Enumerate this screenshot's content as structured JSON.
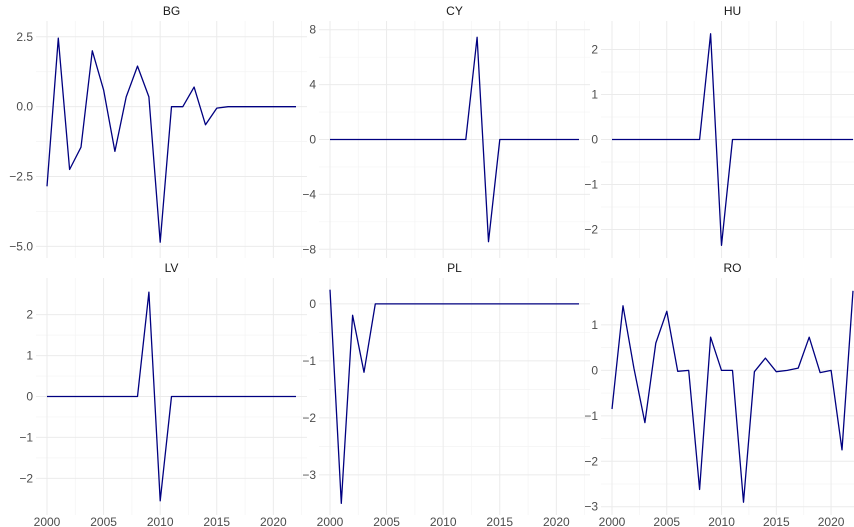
{
  "chart_data": [
    {
      "type": "line",
      "title": "BG",
      "x": [
        2000,
        2001,
        2002,
        2003,
        2004,
        2005,
        2006,
        2007,
        2008,
        2009,
        2010,
        2011,
        2012,
        2013,
        2014,
        2015,
        2016,
        2017,
        2018,
        2019,
        2020,
        2021,
        2022
      ],
      "series": [
        {
          "values": [
            -2.85,
            2.45,
            -2.25,
            -1.45,
            2.0,
            0.6,
            -1.6,
            0.35,
            1.45,
            0.35,
            -4.85,
            0.0,
            0.0,
            0.7,
            -0.65,
            -0.05,
            0.0,
            0.0,
            0.0,
            0.0,
            0.0,
            0.0,
            0.0
          ],
          "color": "#000080"
        }
      ],
      "xlim": [
        2000,
        2022
      ],
      "ylim": [
        -5.2,
        2.85
      ],
      "yticks": [
        2.5,
        0.0,
        -2.5,
        -5.0
      ],
      "ytick_labels": [
        "2.5",
        "0.0",
        "−2.5",
        "−5.0"
      ],
      "xticks": [
        2000,
        2005,
        2010,
        2015,
        2020
      ],
      "grid": true
    },
    {
      "type": "line",
      "title": "CY",
      "x": [
        2000,
        2001,
        2002,
        2003,
        2004,
        2005,
        2006,
        2007,
        2008,
        2009,
        2010,
        2011,
        2012,
        2013,
        2014,
        2015,
        2016,
        2017,
        2018,
        2019,
        2020,
        2021,
        2022
      ],
      "series": [
        {
          "values": [
            0,
            0,
            0,
            0,
            0,
            0,
            0,
            0,
            0,
            0,
            0,
            0,
            0,
            7.45,
            -7.45,
            0,
            0,
            0,
            0,
            0,
            0,
            0,
            0
          ],
          "color": "#000080"
        }
      ],
      "xlim": [
        2000,
        2022
      ],
      "ylim": [
        -8.2,
        8.2
      ],
      "yticks": [
        8,
        4,
        0,
        -4,
        -8
      ],
      "ytick_labels": [
        "8",
        "4",
        "0",
        "−4",
        "−8"
      ],
      "xticks": [
        2000,
        2005,
        2010,
        2015,
        2020
      ],
      "grid": true
    },
    {
      "type": "line",
      "title": "HU",
      "x": [
        2000,
        2001,
        2002,
        2003,
        2004,
        2005,
        2006,
        2007,
        2008,
        2009,
        2010,
        2011,
        2012,
        2013,
        2014,
        2015,
        2016,
        2017,
        2018,
        2019,
        2020,
        2021,
        2022
      ],
      "series": [
        {
          "values": [
            0,
            0,
            0,
            0,
            0,
            0,
            0,
            0,
            0,
            2.35,
            -2.35,
            0,
            0,
            0,
            0,
            0,
            0,
            0,
            0,
            0,
            0,
            0,
            0
          ],
          "color": "#000080"
        }
      ],
      "xlim": [
        2000,
        2022
      ],
      "ylim": [
        -2.5,
        2.5
      ],
      "yticks": [
        2,
        1,
        0,
        -1,
        -2
      ],
      "ytick_labels": [
        "2",
        "1",
        "0",
        "−1",
        "−2"
      ],
      "xticks": [
        2000,
        2005,
        2010,
        2015,
        2020
      ],
      "grid": true
    },
    {
      "type": "line",
      "title": "LV",
      "x": [
        2000,
        2001,
        2002,
        2003,
        2004,
        2005,
        2006,
        2007,
        2008,
        2009,
        2010,
        2011,
        2012,
        2013,
        2014,
        2015,
        2016,
        2017,
        2018,
        2019,
        2020,
        2021,
        2022
      ],
      "series": [
        {
          "values": [
            0,
            0,
            0,
            0,
            0,
            0,
            0,
            0,
            0,
            2.55,
            -2.55,
            0,
            0,
            0,
            0,
            0,
            0,
            0,
            0,
            0,
            0,
            0,
            0
          ],
          "color": "#000080"
        }
      ],
      "xlim": [
        2000,
        2022
      ],
      "ylim": [
        -2.75,
        2.75
      ],
      "yticks": [
        2,
        1,
        0,
        -1,
        -2
      ],
      "ytick_labels": [
        "2",
        "1",
        "0",
        "−1",
        "−2"
      ],
      "xticks": [
        2000,
        2005,
        2010,
        2015,
        2020
      ],
      "xtick_labels": [
        "2000",
        "2005",
        "2010",
        "2015",
        "2020"
      ],
      "grid": true
    },
    {
      "type": "line",
      "title": "PL",
      "x": [
        2000,
        2001,
        2002,
        2003,
        2004,
        2005,
        2006,
        2007,
        2008,
        2009,
        2010,
        2011,
        2012,
        2013,
        2014,
        2015,
        2016,
        2017,
        2018,
        2019,
        2020,
        2021,
        2022
      ],
      "series": [
        {
          "values": [
            0.25,
            -3.5,
            -0.2,
            -1.2,
            0,
            0,
            0,
            0,
            0,
            0,
            0,
            0,
            0,
            0,
            0,
            0,
            0,
            0,
            0,
            0,
            0,
            0,
            0
          ],
          "color": "#000080"
        }
      ],
      "xlim": [
        2000,
        2022
      ],
      "ylim": [
        -3.6,
        0.35
      ],
      "yticks": [
        0,
        -1,
        -2,
        -3
      ],
      "ytick_labels": [
        "0",
        "−1",
        "−2",
        "−3"
      ],
      "xticks": [
        2000,
        2005,
        2010,
        2015,
        2020
      ],
      "xtick_labels": [
        "2000",
        "2005",
        "2010",
        "2015",
        "2020"
      ],
      "grid": true
    },
    {
      "type": "line",
      "title": "RO",
      "x": [
        2000,
        2001,
        2002,
        2003,
        2004,
        2005,
        2006,
        2007,
        2008,
        2009,
        2010,
        2011,
        2012,
        2013,
        2014,
        2015,
        2016,
        2017,
        2018,
        2019,
        2020,
        2021,
        2022
      ],
      "series": [
        {
          "values": [
            -0.85,
            1.42,
            0.05,
            -1.15,
            0.6,
            1.3,
            -0.02,
            0.0,
            -2.62,
            0.73,
            0.0,
            0.0,
            -2.9,
            -0.03,
            0.27,
            -0.03,
            0.0,
            0.05,
            0.73,
            -0.05,
            0.0,
            -1.75,
            1.75
          ],
          "color": "#000080"
        }
      ],
      "xlim": [
        2000,
        2022
      ],
      "ylim": [
        -3.05,
        1.9
      ],
      "yticks": [
        1,
        0,
        -1,
        -2,
        -3
      ],
      "ytick_labels": [
        "1",
        "0",
        "−1",
        "−2",
        "−3"
      ],
      "xticks": [
        2000,
        2005,
        2010,
        2015,
        2020
      ],
      "xtick_labels": [
        "2000",
        "2005",
        "2010",
        "2015",
        "2020"
      ],
      "grid": true
    }
  ]
}
